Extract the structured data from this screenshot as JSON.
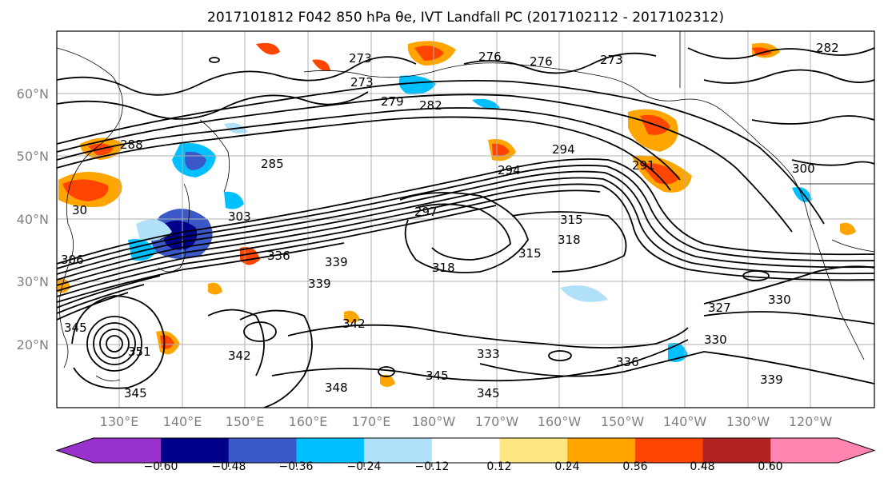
{
  "title": "2017101812 F042 850 hPa θe, IVT Landfall PC (2017102112 - 2017102312)",
  "map": {
    "lat_labels": [
      "60°N",
      "50°N",
      "40°N",
      "30°N",
      "20°N"
    ],
    "lon_labels": [
      "130°E",
      "140°E",
      "150°E",
      "160°E",
      "170°E",
      "180°W",
      "170°W",
      "160°W",
      "150°W",
      "140°W",
      "130°W",
      "120°W"
    ],
    "contour_labels": [
      "273",
      "276",
      "276",
      "273",
      "282",
      "273",
      "279",
      "282",
      "288",
      "285",
      "294",
      "294",
      "291",
      "300",
      "303",
      "297",
      "315",
      "318",
      "315",
      "318",
      "306",
      "339",
      "336",
      "339",
      "342",
      "342",
      "333",
      "345",
      "345",
      "348",
      "351",
      "345",
      "345",
      "330",
      "327",
      "330",
      "339",
      "336",
      "30"
    ]
  },
  "colorbar": {
    "tick_labels": [
      "−0.60",
      "−0.48",
      "−0.36",
      "−0.24",
      "−0.12",
      "0.12",
      "0.24",
      "0.36",
      "0.48",
      "0.60"
    ],
    "colors": [
      "#9932cc",
      "#00008b",
      "#3a58c8",
      "#00bfff",
      "#b0e0fa",
      "#ffffff",
      "#ffe680",
      "#ffa500",
      "#ff4500",
      "#b22222",
      "#ff85b0"
    ]
  }
}
